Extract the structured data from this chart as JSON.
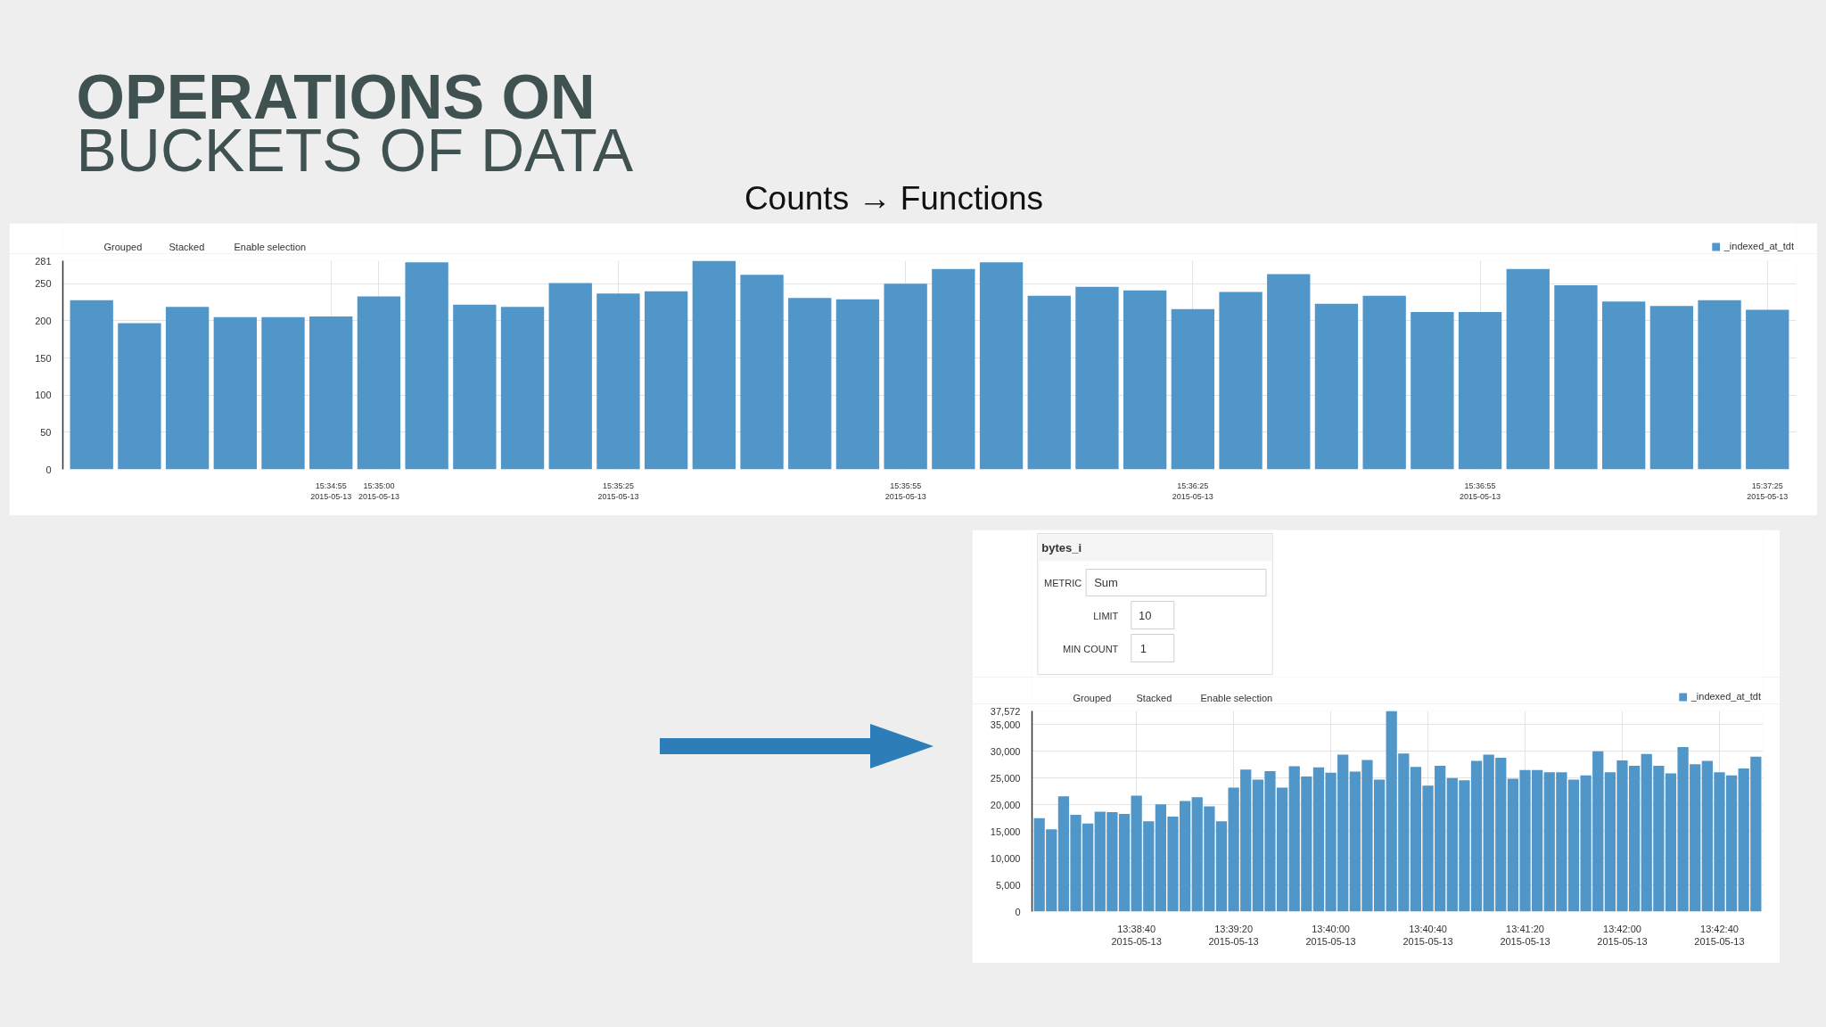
{
  "chart_data": [
    {
      "type": "bar",
      "title": "OPERATIONS ON\nBUCKETS OF DATA",
      "subtitle": "Counts → Functions",
      "x": [
        "2015-05-13T15:34:30",
        "2015-05-13T15:34:35",
        "2015-05-13T15:34:40",
        "2015-05-13T15:34:45",
        "2015-05-13T15:34:50",
        "2015-05-13T15:34:55",
        "2015-05-13T15:35:00",
        "2015-05-13T15:35:05",
        "2015-05-13T15:35:10",
        "2015-05-13T15:35:15",
        "2015-05-13T15:35:20",
        "2015-05-13T15:35:25",
        "2015-05-13T15:35:30",
        "2015-05-13T15:35:35",
        "2015-05-13T15:35:40",
        "2015-05-13T15:35:45",
        "2015-05-13T15:35:50",
        "2015-05-13T15:35:55",
        "2015-05-13T15:36:00",
        "2015-05-13T15:36:05",
        "2015-05-13T15:36:10",
        "2015-05-13T15:36:15",
        "2015-05-13T15:36:20",
        "2015-05-13T15:36:25",
        "2015-05-13T15:36:30",
        "2015-05-13T15:36:35",
        "2015-05-13T15:36:40",
        "2015-05-13T15:36:45",
        "2015-05-13T15:36:50",
        "2015-05-13T15:36:55",
        "2015-05-13T15:37:00",
        "2015-05-13T15:37:05",
        "2015-05-13T15:37:10",
        "2015-05-13T15:37:15",
        "2015-05-13T15:37:20",
        "2015-05-13T15:37:25"
      ],
      "series": [
        {
          "name": "_indexed_at_tdt",
          "color": "#5196c9",
          "values": [
            228,
            197,
            219,
            205,
            205,
            206,
            233,
            279,
            222,
            219,
            251,
            237,
            240,
            281,
            262,
            231,
            229,
            250,
            270,
            279,
            234,
            246,
            241,
            216,
            239,
            263,
            223,
            234,
            212,
            212,
            270,
            248,
            226,
            220,
            228,
            215
          ]
        }
      ],
      "xlim": [
        "2015-05-13T15:34:27",
        "2015-05-13T15:37:28"
      ],
      "xticks": [
        {
          "value": "2015-05-13T15:34:55",
          "label": "15:34:55\n2015-05-13"
        },
        {
          "value": "2015-05-13T15:35:00",
          "label": "15:35:00\n2015-05-13"
        },
        {
          "value": "2015-05-13T15:35:25",
          "label": "15:35:25\n2015-05-13"
        },
        {
          "value": "2015-05-13T15:35:55",
          "label": "15:35:55\n2015-05-13"
        },
        {
          "value": "2015-05-13T15:36:25",
          "label": "15:36:25\n2015-05-13"
        },
        {
          "value": "2015-05-13T15:36:55",
          "label": "15:36:55\n2015-05-13"
        },
        {
          "value": "2015-05-13T15:37:25",
          "label": "15:37:25\n2015-05-13"
        }
      ],
      "ylim": [
        0,
        281
      ],
      "yticks": [
        0,
        50,
        100,
        150,
        200,
        250,
        281
      ],
      "grid": true,
      "legend": "top right",
      "annotations": [
        "Grouped",
        "Stacked",
        "Enable selection"
      ]
    },
    {
      "type": "bar",
      "x": [
        "2015-05-13T13:38:00",
        "2015-05-13T13:38:05",
        "2015-05-13T13:38:10",
        "2015-05-13T13:38:15",
        "2015-05-13T13:38:20",
        "2015-05-13T13:38:25",
        "2015-05-13T13:38:30",
        "2015-05-13T13:38:35",
        "2015-05-13T13:38:40",
        "2015-05-13T13:38:45",
        "2015-05-13T13:38:50",
        "2015-05-13T13:38:55",
        "2015-05-13T13:39:00",
        "2015-05-13T13:39:05",
        "2015-05-13T13:39:10",
        "2015-05-13T13:39:15",
        "2015-05-13T13:39:20",
        "2015-05-13T13:39:25",
        "2015-05-13T13:39:30",
        "2015-05-13T13:39:35",
        "2015-05-13T13:39:40",
        "2015-05-13T13:39:45",
        "2015-05-13T13:39:50",
        "2015-05-13T13:39:55",
        "2015-05-13T13:40:00",
        "2015-05-13T13:40:05",
        "2015-05-13T13:40:10",
        "2015-05-13T13:40:15",
        "2015-05-13T13:40:20",
        "2015-05-13T13:40:25",
        "2015-05-13T13:40:30",
        "2015-05-13T13:40:35",
        "2015-05-13T13:40:40",
        "2015-05-13T13:40:45",
        "2015-05-13T13:40:50",
        "2015-05-13T13:40:55",
        "2015-05-13T13:41:00",
        "2015-05-13T13:41:05",
        "2015-05-13T13:41:10",
        "2015-05-13T13:41:15",
        "2015-05-13T13:41:20",
        "2015-05-13T13:41:25",
        "2015-05-13T13:41:30",
        "2015-05-13T13:41:35",
        "2015-05-13T13:41:40",
        "2015-05-13T13:41:45",
        "2015-05-13T13:41:50",
        "2015-05-13T13:41:55",
        "2015-05-13T13:42:00",
        "2015-05-13T13:42:05",
        "2015-05-13T13:42:10",
        "2015-05-13T13:42:15",
        "2015-05-13T13:42:20",
        "2015-05-13T13:42:25",
        "2015-05-13T13:42:30",
        "2015-05-13T13:42:35",
        "2015-05-13T13:42:40",
        "2015-05-13T13:42:45",
        "2015-05-13T13:42:50",
        "2015-05-13T13:42:55"
      ],
      "series": [
        {
          "name": "_indexed_at_tdt",
          "color": "#5196c9",
          "values": [
            17500,
            15400,
            21600,
            18100,
            16500,
            18700,
            18600,
            18300,
            21700,
            16900,
            20100,
            17800,
            20700,
            21400,
            19700,
            16900,
            23200,
            26600,
            24700,
            26300,
            23200,
            27200,
            25300,
            27000,
            26000,
            29400,
            26200,
            28400,
            24700,
            37572,
            29600,
            27100,
            23600,
            27300,
            25000,
            24600,
            28200,
            29400,
            28800,
            24900,
            26500,
            26500,
            26100,
            26100,
            24700,
            25500,
            30000,
            26100,
            28300,
            27300,
            29500,
            27300,
            25900,
            30800,
            27600,
            28200,
            26100,
            25500,
            26800,
            29000
          ]
        }
      ],
      "xlim": [
        "2015-05-13T13:37:57",
        "2015-05-13T13:42:58"
      ],
      "xticks": [
        {
          "value": "2015-05-13T13:38:40",
          "label": "13:38:40\n2015-05-13"
        },
        {
          "value": "2015-05-13T13:39:20",
          "label": "13:39:20\n2015-05-13"
        },
        {
          "value": "2015-05-13T13:40:00",
          "label": "13:40:00\n2015-05-13"
        },
        {
          "value": "2015-05-13T13:40:40",
          "label": "13:40:40\n2015-05-13"
        },
        {
          "value": "2015-05-13T13:41:20",
          "label": "13:41:20\n2015-05-13"
        },
        {
          "value": "2015-05-13T13:42:00",
          "label": "13:42:00\n2015-05-13"
        },
        {
          "value": "2015-05-13T13:42:40",
          "label": "13:42:40\n2015-05-13"
        }
      ],
      "ylim": [
        0,
        37572
      ],
      "yticks": [
        0,
        {
          "value": 5000,
          "label": "5,000"
        },
        {
          "value": 10000,
          "label": "10,000"
        },
        {
          "value": 15000,
          "label": "15,000"
        },
        {
          "value": 20000,
          "label": "20,000"
        },
        {
          "value": 25000,
          "label": "25,000"
        },
        {
          "value": 30000,
          "label": "30,000"
        },
        {
          "value": 35000,
          "label": "35,000"
        },
        {
          "value": 37572,
          "label": "37,572"
        }
      ],
      "grid": true,
      "legend": "top right",
      "annotations": [
        "bytes_i",
        "METRIC",
        "Sum",
        "LIMIT",
        "10",
        "MIN COUNT",
        "1",
        "Grouped",
        "Stacked",
        "Enable selection"
      ]
    }
  ]
}
